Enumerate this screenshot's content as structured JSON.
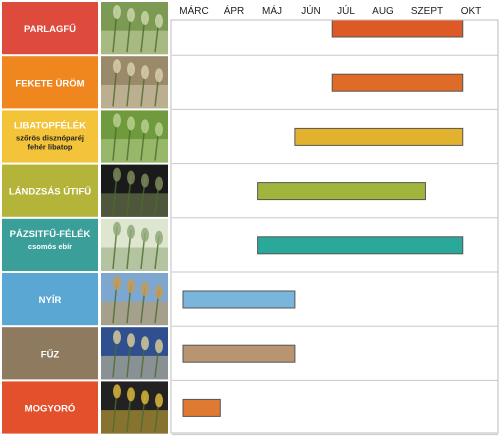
{
  "chart_data": {
    "type": "bar",
    "months": [
      "MÁRC",
      "ÁPR",
      "MÁJ",
      "JÚN",
      "JÚL",
      "AUG",
      "SZEPT",
      "OKT"
    ],
    "series": [
      {
        "name": "PARLAGFŰ",
        "subtitle": "",
        "label_color": "#de4a3c",
        "photo_icon": "ragweed-plant",
        "photo_colors": [
          "#7d9a55",
          "#c9d6a8"
        ],
        "bar_color": "#dd5a26",
        "start": 5.0,
        "end": 8.5
      },
      {
        "name": "FEKETE ÜRÖM",
        "subtitle": "",
        "label_color": "#f0861e",
        "photo_icon": "mugwort-plant",
        "photo_colors": [
          "#9a8a6a",
          "#d8ccae"
        ],
        "bar_color": "#df6b28",
        "start": 5.0,
        "end": 8.5
      },
      {
        "name": "LIBATOPFÉLÉK",
        "subtitle": "szőrös disznóparéj\nfehér libatop",
        "subtitle_color": "#222222",
        "label_color": "#f3c43a",
        "photo_icon": "goosefoot-plant",
        "photo_colors": [
          "#6f9a3e",
          "#b8d08c"
        ],
        "bar_color": "#e2b22e",
        "start": 4.0,
        "end": 8.5
      },
      {
        "name": "LÁNDZSÁS ÚTIFŰ",
        "subtitle": "",
        "label_color": "#b5b43a",
        "photo_icon": "plantain-plant",
        "photo_colors": [
          "#1a1a1a",
          "#7a8a5a"
        ],
        "bar_color": "#9fb53c",
        "start": 3.0,
        "end": 7.5
      },
      {
        "name": "PÁZSITFŰ-FÉLÉK",
        "subtitle": "csomós ebír",
        "subtitle_color": "#ffffff",
        "label_color": "#3a9e99",
        "photo_icon": "grass-plant",
        "photo_colors": [
          "#dfe6d0",
          "#8fa87a"
        ],
        "bar_color": "#2aa99a",
        "start": 3.0,
        "end": 8.5
      },
      {
        "name": "NYÍR",
        "subtitle": "",
        "label_color": "#5ba7d4",
        "photo_icon": "birch-catkin",
        "photo_colors": [
          "#7ea7cf",
          "#c49b55"
        ],
        "bar_color": "#7ab5dc",
        "start": 1.0,
        "end": 4.0
      },
      {
        "name": "FŰZ",
        "subtitle": "",
        "label_color": "#8e7a5e",
        "photo_icon": "willow-catkin",
        "photo_colors": [
          "#2f4f8e",
          "#d4c89a"
        ],
        "bar_color": "#b89470",
        "start": 1.0,
        "end": 4.0
      },
      {
        "name": "MOGYORÓ",
        "subtitle": "",
        "label_color": "#e3502c",
        "photo_icon": "hazel-catkin",
        "photo_colors": [
          "#222222",
          "#d9b63a"
        ],
        "bar_color": "#e07a33",
        "start": 1.0,
        "end": 2.0
      }
    ]
  }
}
